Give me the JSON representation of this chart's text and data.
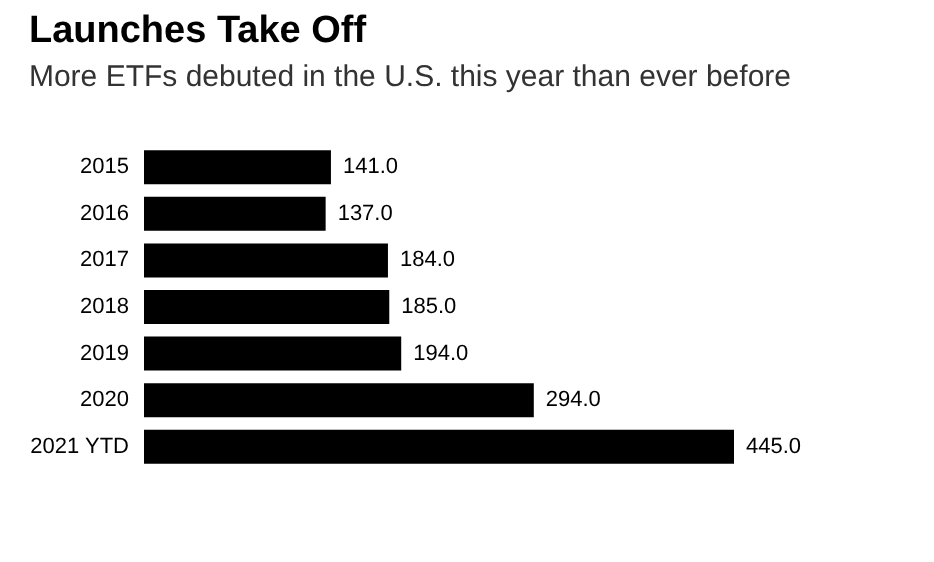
{
  "chart_data": {
    "type": "bar",
    "orientation": "horizontal",
    "title": "Launches Take Off",
    "subtitle": "More ETFs debuted in the U.S. this year than ever before",
    "categories": [
      "2015",
      "2016",
      "2017",
      "2018",
      "2019",
      "2020",
      "2021 YTD"
    ],
    "values": [
      141.0,
      137.0,
      184.0,
      185.0,
      194.0,
      294.0,
      445.0
    ],
    "value_labels": [
      "141.0",
      "137.0",
      "184.0",
      "185.0",
      "194.0",
      "294.0",
      "445.0"
    ],
    "color": "#000000",
    "grid": false,
    "tick_labels": "y"
  }
}
